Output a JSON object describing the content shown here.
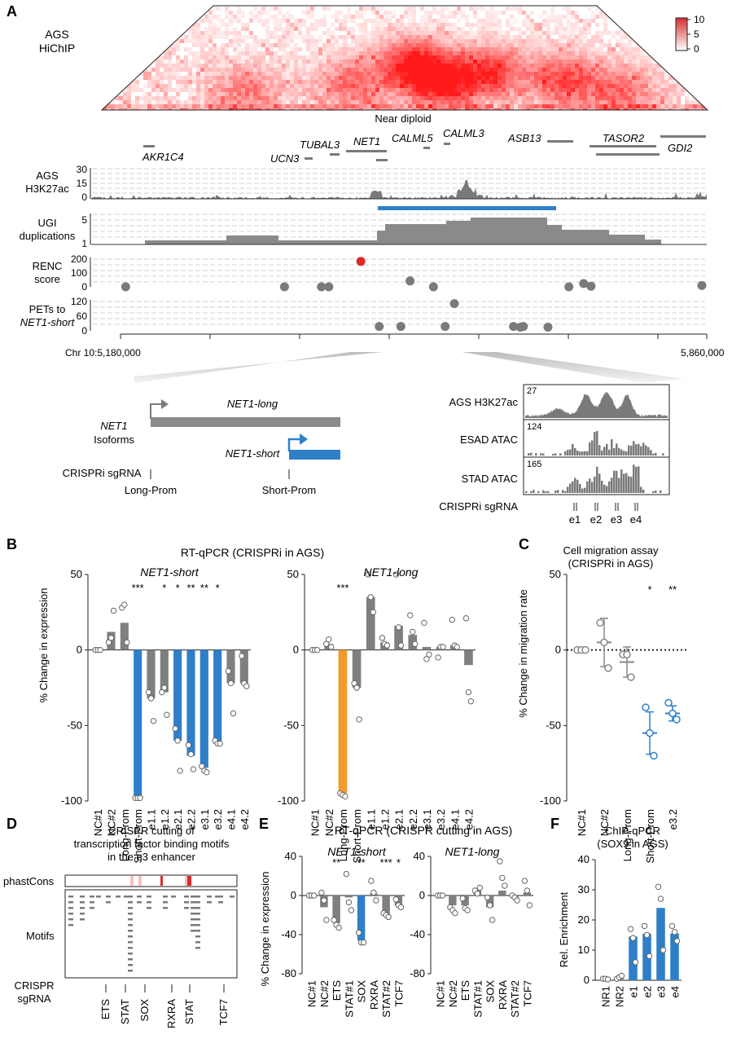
{
  "panels": {
    "A": {
      "letter": "A",
      "hichip_label": [
        "AGS",
        "HiChIP"
      ],
      "hichip_footer": "Near diploid",
      "colorbar_ticks": [
        "10",
        "5",
        "0"
      ],
      "genes": [
        "AKR1C4",
        "UCN3",
        "TUBAL3",
        "NET1",
        "CALML5",
        "CALML3",
        "ASB13",
        "TASOR2",
        "GDI2"
      ],
      "tracks": {
        "h3k27ac": {
          "label": [
            "AGS",
            "H3K27ac"
          ],
          "ticks": [
            "30",
            "15",
            "0"
          ]
        },
        "ugi": {
          "label": [
            "UGI",
            "duplications"
          ],
          "ticks": [
            "5",
            "1"
          ]
        },
        "renc": {
          "label": [
            "RENC",
            "score"
          ],
          "ticks": [
            "200",
            "100",
            "0"
          ]
        },
        "pets": {
          "label": [
            "PETs to",
            "NET1-short"
          ],
          "ticks": [
            "120",
            "60",
            "0"
          ]
        }
      },
      "coord_left": "Chr 10:5,180,000",
      "coord_right": "5,860,000",
      "renc_points": [
        {
          "pos": 0.056,
          "score": 0,
          "highlight": false
        },
        {
          "pos": 0.314,
          "score": 0,
          "highlight": false
        },
        {
          "pos": 0.374,
          "score": 0,
          "highlight": false
        },
        {
          "pos": 0.386,
          "score": 0,
          "highlight": false
        },
        {
          "pos": 0.438,
          "score": 195,
          "highlight": true
        },
        {
          "pos": 0.518,
          "score": 45,
          "highlight": false
        },
        {
          "pos": 0.556,
          "score": 0,
          "highlight": false
        },
        {
          "pos": 0.776,
          "score": 0,
          "highlight": false
        },
        {
          "pos": 0.8,
          "score": 25,
          "highlight": false
        },
        {
          "pos": 0.812,
          "score": 5,
          "highlight": false
        },
        {
          "pos": 0.992,
          "score": 10,
          "highlight": false
        }
      ],
      "pets_points": [
        {
          "pos": 0.468,
          "value": 5
        },
        {
          "pos": 0.503,
          "value": 5
        },
        {
          "pos": 0.575,
          "value": 5
        },
        {
          "pos": 0.59,
          "value": 110
        },
        {
          "pos": 0.686,
          "value": 5
        },
        {
          "pos": 0.697,
          "value": 2
        },
        {
          "pos": 0.702,
          "value": 5
        },
        {
          "pos": 0.742,
          "value": 2
        }
      ],
      "isoform": {
        "title": [
          "NET1",
          "Isoforms"
        ],
        "long": "NET1-long",
        "short": "NET1-short",
        "crispri_label": "CRISPRi sgRNA",
        "long_prom": "Long-Prom",
        "short_prom": "Short-Prom"
      },
      "zoom": {
        "tracks": [
          {
            "label": "AGS H3K27ac",
            "max": "27"
          },
          {
            "label": "ESAD ATAC",
            "max": "124"
          },
          {
            "label": "STAD ATAC",
            "max": "165"
          }
        ],
        "crispri_label": "CRISPRi sgRNA",
        "enhancers": [
          "e1",
          "e2",
          "e3",
          "e4"
        ]
      }
    },
    "B": {
      "letter": "B",
      "title": "RT-qPCR (CRISPRi in AGS)",
      "ylabel": "% Change in expression",
      "yticks": [
        "50",
        "0",
        "-50",
        "-100"
      ]
    },
    "C": {
      "letter": "C",
      "title": [
        "Cell migration assay",
        "(CRISPRi in AGS)"
      ],
      "ylabel": "% Change in migration rate",
      "yticks": [
        "50",
        "0",
        "-50",
        "-100"
      ]
    },
    "D": {
      "letter": "D",
      "title": [
        "CRISPR cutting of",
        "transcription factor binding motifs",
        "in the e3 enhancer"
      ],
      "phastcons": "phastCons",
      "motifs": "Motifs",
      "crispr_label": [
        "CRISPR",
        "sgRNA"
      ],
      "targets": [
        "ETS",
        "STAT",
        "SOX",
        "RXRA",
        "STAT",
        "TCF7"
      ]
    },
    "E": {
      "letter": "E",
      "title": "RT-qPCR (CRISPR cutting in AGS)",
      "ylabel": "% Change in expression",
      "yticks": [
        "40",
        "0",
        "-40",
        "-80"
      ]
    },
    "F": {
      "letter": "F",
      "title": [
        "ChIP-qPCR",
        "(SOX9 in AGS)"
      ],
      "ylabel": "Rel. Enrichment",
      "yticks": [
        "40",
        "30",
        "20",
        "10",
        "0"
      ]
    }
  },
  "colors": {
    "blue": "#2f7fc8",
    "orange": "#f39a2b",
    "gray": "#7f7f7f",
    "red": "#e0292b",
    "heat": "#e53935"
  },
  "chart_data": [
    {
      "id": "B-short",
      "type": "bar",
      "title": "NET1-short",
      "ylabel": "% Change in expression",
      "ylim": [
        -100,
        50
      ],
      "categories": [
        "NC#1",
        "NC#2",
        "Long-Prom",
        "Short-Prom",
        "e1.1",
        "e1.2",
        "e2.1",
        "e2.2",
        "e3.1",
        "e3.2",
        "e4.1",
        "e4.2"
      ],
      "values": [
        0,
        12,
        18,
        -98,
        -32,
        -28,
        -60,
        -70,
        -78,
        -62,
        -22,
        -22
      ],
      "color_keys": [
        "gray",
        "gray",
        "gray",
        "blue",
        "gray",
        "gray",
        "blue",
        "blue",
        "blue",
        "blue",
        "gray",
        "gray"
      ],
      "points": [
        [
          0,
          0,
          0
        ],
        [
          5,
          8,
          26
        ],
        [
          28,
          30,
          5
        ],
        [
          -98,
          -98,
          -98
        ],
        [
          -28,
          -32,
          -47
        ],
        [
          -28,
          -25,
          -43
        ],
        [
          -52,
          -60,
          -80
        ],
        [
          -63,
          -69,
          -79
        ],
        [
          -77,
          -80,
          -81
        ],
        [
          -60,
          -62,
          -62
        ],
        [
          -14,
          -22,
          -42
        ],
        [
          -4,
          -22,
          -24
        ]
      ],
      "significance": [
        "",
        "",
        "",
        "***",
        "",
        "*",
        "*",
        "**",
        "**",
        "*",
        "",
        ""
      ]
    },
    {
      "id": "B-long",
      "type": "bar",
      "title": "NET1-long",
      "ylabel": "% Change in expression",
      "ylim": [
        -100,
        50
      ],
      "categories": [
        "NC#1",
        "NC#2",
        "Long-Prom",
        "Short-Prom",
        "e1.1",
        "e1.2",
        "e2.1",
        "e2.2",
        "e3.1",
        "e3.2",
        "e4.1",
        "e4.2"
      ],
      "values": [
        0,
        4,
        -95,
        -25,
        35,
        5,
        16,
        10,
        2,
        2,
        3,
        -10
      ],
      "color_keys": [
        "gray",
        "gray",
        "orange",
        "gray",
        "gray",
        "gray",
        "gray",
        "gray",
        "gray",
        "gray",
        "gray",
        "gray"
      ],
      "points": [
        [
          0,
          0,
          0
        ],
        [
          4,
          7,
          2
        ],
        [
          -95,
          -96,
          -97
        ],
        [
          -22,
          -25,
          -46
        ],
        [
          50,
          35,
          25
        ],
        [
          8,
          4,
          3
        ],
        [
          50,
          15,
          3
        ],
        [
          23,
          12,
          4
        ],
        [
          18,
          -6,
          -3
        ],
        [
          -5,
          2,
          2
        ],
        [
          20,
          3,
          2
        ],
        [
          21,
          -28,
          -34
        ]
      ],
      "significance": [
        "",
        "",
        "***",
        "",
        "",
        "",
        "",
        "",
        "",
        "",
        "",
        ""
      ]
    },
    {
      "id": "C",
      "type": "scatter",
      "title": "Cell migration assay (CRISPRi in AGS)",
      "ylabel": "% Change in migration rate",
      "ylim": [
        -100,
        50
      ],
      "categories": [
        "NC#1",
        "NC#2",
        "Long-Prom",
        "Short-Prom",
        "e3.2"
      ],
      "means": [
        0,
        5,
        -8,
        -55,
        -42
      ],
      "errors": [
        0,
        16,
        10,
        14,
        5
      ],
      "color_keys": [
        "gray",
        "gray",
        "gray",
        "blue",
        "blue"
      ],
      "points": [
        [
          0,
          0,
          0
        ],
        [
          18,
          5,
          -12
        ],
        [
          -3,
          -3,
          -18
        ],
        [
          -38,
          -55,
          -70
        ],
        [
          -35,
          -42,
          -46
        ]
      ],
      "significance": [
        "",
        "",
        "",
        "*",
        "**"
      ]
    },
    {
      "id": "E-short",
      "type": "bar",
      "title": "NET1-short",
      "ylabel": "% Change in expression",
      "ylim": [
        -80,
        40
      ],
      "categories": [
        "NC#1",
        "NC#2",
        "ETS",
        "STAT#1",
        "SOX",
        "RXRA",
        "STAT#2",
        "TCF7"
      ],
      "values": [
        0,
        -12,
        -28,
        -2,
        -46,
        2,
        -20,
        -10
      ],
      "color_keys": [
        "gray",
        "gray",
        "gray",
        "gray",
        "blue",
        "gray",
        "gray",
        "gray"
      ],
      "points": [
        [
          0,
          0,
          0
        ],
        [
          3,
          -5,
          -25
        ],
        [
          -25,
          -30,
          -33
        ],
        [
          22,
          -7,
          -15
        ],
        [
          -38,
          -48,
          -48
        ],
        [
          15,
          3,
          -5
        ],
        [
          -18,
          -20,
          -22
        ],
        [
          -4,
          -10,
          -12
        ]
      ],
      "significance": [
        "",
        "",
        "**",
        "",
        "**",
        "",
        "***",
        "*"
      ]
    },
    {
      "id": "E-long",
      "type": "bar",
      "title": "NET1-long",
      "ylabel": "% Change in expression",
      "ylim": [
        -80,
        40
      ],
      "categories": [
        "NC#1",
        "NC#2",
        "ETS",
        "STAT#1",
        "SOX",
        "RXRA",
        "STAT#2",
        "TCF7"
      ],
      "values": [
        0,
        -10,
        -10,
        5,
        -12,
        5,
        -3,
        3
      ],
      "color_keys": [
        "gray",
        "gray",
        "gray",
        "gray",
        "gray",
        "gray",
        "gray",
        "gray"
      ],
      "points": [
        [
          0,
          0,
          0
        ],
        [
          -12,
          -15,
          -18
        ],
        [
          -3,
          -13,
          -15
        ],
        [
          5,
          2,
          8
        ],
        [
          -2,
          -10,
          -25
        ],
        [
          35,
          18,
          10
        ],
        [
          0,
          -2,
          -5
        ],
        [
          15,
          5,
          -10
        ]
      ],
      "significance": [
        "",
        "",
        "",
        "",
        "",
        "",
        "",
        ""
      ]
    },
    {
      "id": "F",
      "type": "bar",
      "title": "ChIP-qPCR (SOX9 in AGS)",
      "ylabel": "Rel. Enrichment",
      "ylim": [
        0,
        40
      ],
      "categories": [
        "NR1",
        "NR2",
        "e1",
        "e2",
        "e3",
        "e4"
      ],
      "values": [
        0.5,
        1,
        14.5,
        15.5,
        24,
        15.5
      ],
      "color_keys": [
        "gray",
        "gray",
        "blue",
        "blue",
        "blue",
        "blue"
      ],
      "points": [
        [
          0.5,
          0.5,
          0.3
        ],
        [
          0.5,
          1,
          1.5
        ],
        [
          17,
          14,
          6
        ],
        [
          18,
          15,
          8
        ],
        [
          31,
          27,
          10
        ],
        [
          18,
          16,
          13
        ]
      ],
      "significance": [
        "",
        "",
        "",
        "",
        "",
        ""
      ]
    }
  ]
}
